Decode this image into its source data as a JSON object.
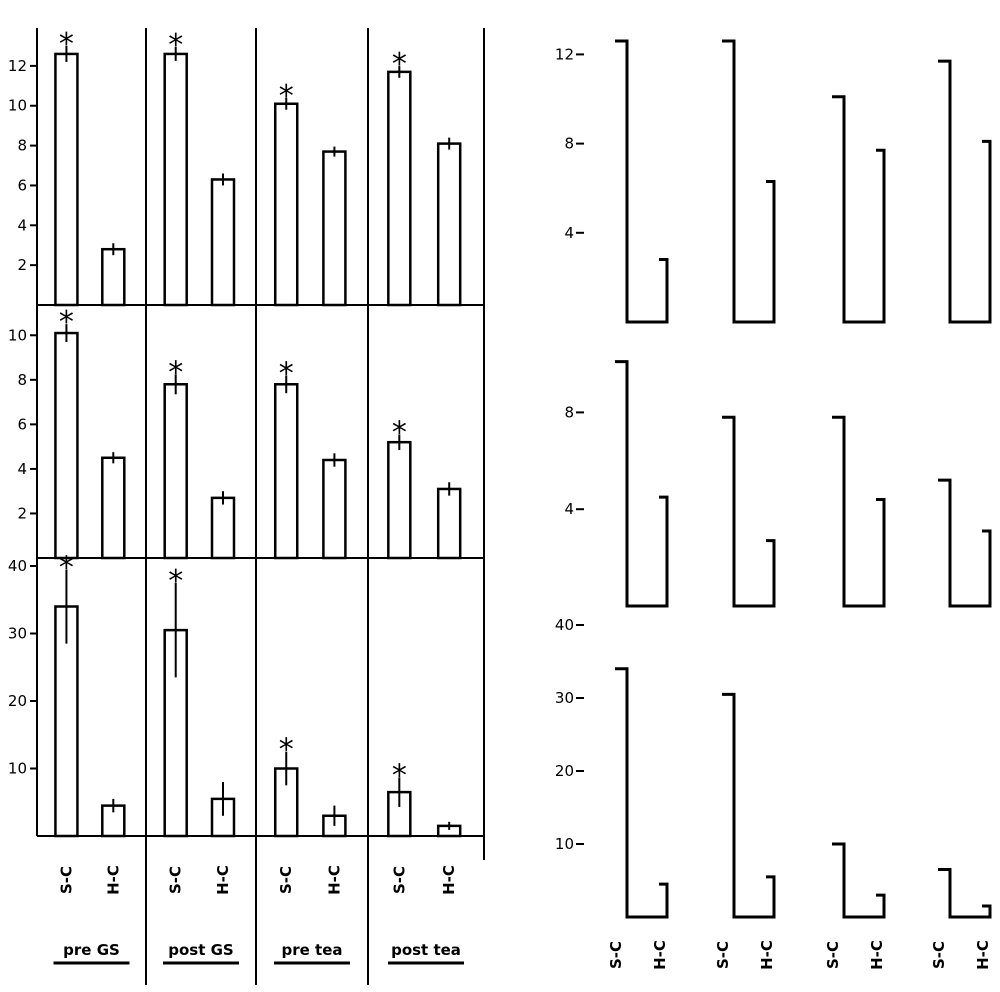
{
  "groups": [
    "pre GS",
    "post GS",
    "pre tea",
    "post tea"
  ],
  "categories": [
    "S-C",
    "H-C"
  ],
  "chart_data": [
    {
      "type": "bar",
      "panel": "left-top",
      "categories": [
        "S-C",
        "H-C"
      ],
      "groups": [
        "pre GS",
        "post GS",
        "pre tea",
        "post tea"
      ],
      "ylim": [
        0,
        13.5
      ],
      "yticks": [
        2,
        4,
        6,
        8,
        10,
        12
      ],
      "values": [
        [
          12.6,
          2.8
        ],
        [
          12.6,
          6.3
        ],
        [
          10.1,
          7.7
        ],
        [
          11.7,
          8.1
        ]
      ],
      "errors": [
        [
          0.4,
          0.3
        ],
        [
          0.35,
          0.3
        ],
        [
          0.3,
          0.25
        ],
        [
          0.3,
          0.3
        ]
      ],
      "significant": [
        true,
        true,
        true,
        true
      ]
    },
    {
      "type": "bar",
      "panel": "left-middle",
      "categories": [
        "S-C",
        "H-C"
      ],
      "groups": [
        "pre GS",
        "post GS",
        "pre tea",
        "post tea"
      ],
      "ylim": [
        0,
        11
      ],
      "yticks": [
        2,
        4,
        6,
        8,
        10
      ],
      "values": [
        [
          10.1,
          4.5
        ],
        [
          7.8,
          2.7
        ],
        [
          7.8,
          4.4
        ],
        [
          5.2,
          3.1
        ]
      ],
      "errors": [
        [
          0.4,
          0.25
        ],
        [
          0.45,
          0.3
        ],
        [
          0.4,
          0.3
        ],
        [
          0.35,
          0.3
        ]
      ],
      "significant": [
        true,
        true,
        true,
        true
      ]
    },
    {
      "type": "bar",
      "panel": "left-bottom",
      "categories": [
        "S-C",
        "H-C"
      ],
      "groups": [
        "pre GS",
        "post GS",
        "pre tea",
        "post tea"
      ],
      "ylim": [
        0,
        40
      ],
      "yticks": [
        10,
        20,
        30,
        40
      ],
      "values": [
        [
          34,
          4.5
        ],
        [
          30.5,
          5.5
        ],
        [
          10,
          3
        ],
        [
          6.5,
          1.5
        ]
      ],
      "errors": [
        [
          5.5,
          1
        ],
        [
          7,
          2.5
        ],
        [
          2.5,
          1.5
        ],
        [
          2.2,
          0.6
        ]
      ],
      "significant": [
        true,
        true,
        true,
        true
      ]
    },
    {
      "type": "bar",
      "panel": "right-top",
      "categories": [
        "S-C",
        "H-C"
      ],
      "ylim": [
        0,
        13.5
      ],
      "yticks": [
        12,
        8,
        4
      ],
      "values": [
        [
          12.6,
          2.8
        ],
        [
          12.6,
          6.3
        ],
        [
          10.1,
          7.7
        ],
        [
          11.7,
          8.1
        ]
      ]
    },
    {
      "type": "bar",
      "panel": "right-middle",
      "categories": [
        "S-C",
        "H-C"
      ],
      "ylim": [
        0,
        11
      ],
      "yticks": [
        8,
        4
      ],
      "values": [
        [
          10.1,
          4.5
        ],
        [
          7.8,
          2.7
        ],
        [
          7.8,
          4.4
        ],
        [
          5.2,
          3.1
        ]
      ]
    },
    {
      "type": "bar",
      "panel": "right-bottom",
      "categories": [
        "S-C",
        "H-C"
      ],
      "ylim": [
        0,
        40
      ],
      "yticks": [
        40,
        30,
        20,
        10
      ],
      "values": [
        [
          34,
          4.5
        ],
        [
          30.5,
          5.5
        ],
        [
          10,
          3
        ],
        [
          6.5,
          1.5
        ]
      ]
    }
  ]
}
